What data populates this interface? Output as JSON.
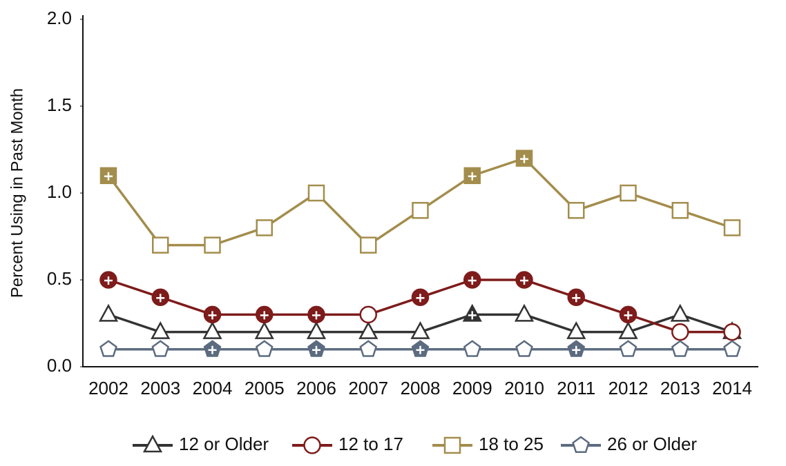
{
  "chart_data": {
    "type": "line",
    "y_label": "Percent Using in Past Month",
    "categories": [
      "2002",
      "2003",
      "2004",
      "2005",
      "2006",
      "2007",
      "2008",
      "2009",
      "2010",
      "2011",
      "2012",
      "2013",
      "2014"
    ],
    "ylim": [
      0,
      2
    ],
    "yticks": [
      {
        "value": 0,
        "label": "0.0"
      },
      0.5,
      {
        "value": 1,
        "label": "1.0"
      },
      1.5,
      {
        "value": 2,
        "label": "2.0"
      }
    ],
    "grid": false,
    "legend": "bottom",
    "series": [
      {
        "name": "12 or Older",
        "color": "#333333",
        "marker": "triangle",
        "values": [
          0.3,
          0.2,
          0.2,
          0.2,
          0.2,
          0.2,
          0.2,
          0.3,
          0.3,
          0.2,
          0.2,
          0.3,
          0.2
        ],
        "filled": [
          false,
          false,
          false,
          false,
          false,
          false,
          false,
          true,
          false,
          false,
          false,
          false,
          false
        ]
      },
      {
        "name": "12 to 17",
        "color": "#7e1b1b",
        "marker": "circle",
        "values": [
          0.5,
          0.4,
          0.3,
          0.3,
          0.3,
          0.3,
          0.4,
          0.5,
          0.5,
          0.4,
          0.3,
          0.2,
          0.2
        ],
        "filled": [
          true,
          true,
          true,
          true,
          true,
          false,
          true,
          true,
          true,
          true,
          true,
          false,
          false
        ]
      },
      {
        "name": "18 to 25",
        "color": "#a38d4c",
        "marker": "square",
        "values": [
          1.1,
          0.7,
          0.7,
          0.8,
          1.0,
          0.7,
          0.9,
          1.1,
          1.2,
          0.9,
          1.0,
          0.9,
          0.8
        ],
        "filled": [
          true,
          false,
          false,
          false,
          false,
          false,
          false,
          true,
          true,
          false,
          false,
          false,
          false
        ]
      },
      {
        "name": "26 or Older",
        "color": "#5c6b80",
        "marker": "pentagon",
        "values": [
          0.1,
          0.1,
          0.1,
          0.1,
          0.1,
          0.1,
          0.1,
          0.1,
          0.1,
          0.1,
          0.1,
          0.1,
          0.1
        ],
        "filled": [
          false,
          false,
          true,
          false,
          true,
          false,
          true,
          false,
          false,
          true,
          false,
          false,
          false
        ]
      }
    ]
  }
}
